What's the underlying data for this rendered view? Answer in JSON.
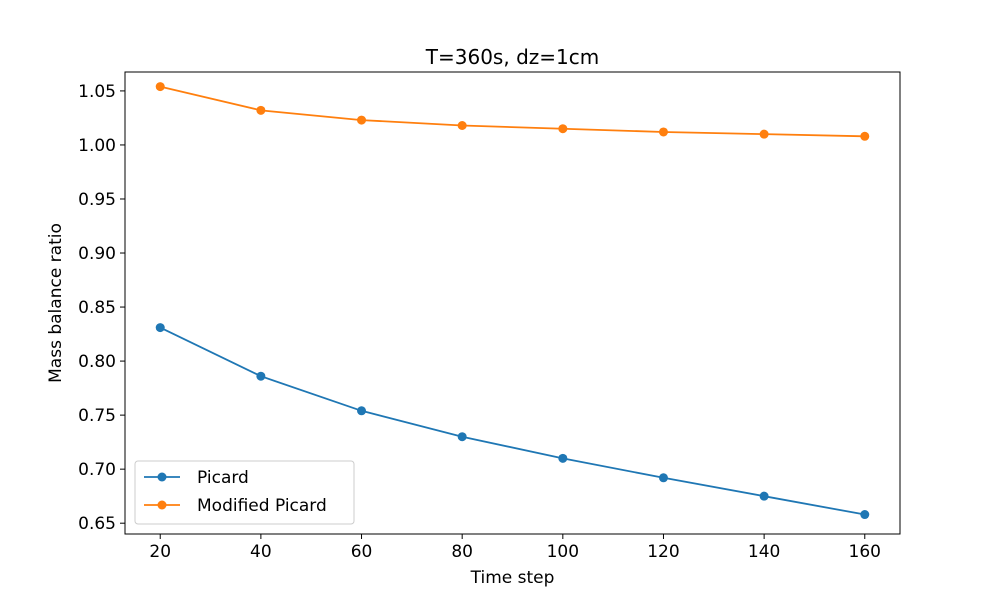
{
  "chart_data": {
    "type": "line",
    "title": "T=360s, dz=1cm",
    "xlabel": "Time step",
    "ylabel": "Mass balance ratio",
    "x": [
      20,
      40,
      60,
      80,
      100,
      120,
      140,
      160
    ],
    "xlim": [
      13,
      167
    ],
    "ylim": [
      0.64,
      1.0675
    ],
    "xticks": [
      20,
      40,
      60,
      80,
      100,
      120,
      140,
      160
    ],
    "yticks": [
      0.65,
      0.7,
      0.75,
      0.8,
      0.85,
      0.9,
      0.95,
      1.0,
      1.05
    ],
    "ytick_labels": [
      "0.65",
      "0.70",
      "0.75",
      "0.80",
      "0.85",
      "0.90",
      "0.95",
      "1.00",
      "1.05"
    ],
    "grid": false,
    "legend_position": "lower-left",
    "marker": "circle",
    "series": [
      {
        "name": "Picard",
        "color": "#1f77b4",
        "values": [
          0.831,
          0.786,
          0.754,
          0.73,
          0.71,
          0.692,
          0.675,
          0.658
        ]
      },
      {
        "name": "Modified Picard",
        "color": "#ff7f0e",
        "values": [
          1.054,
          1.032,
          1.023,
          1.018,
          1.015,
          1.012,
          1.01,
          1.008
        ]
      }
    ]
  }
}
